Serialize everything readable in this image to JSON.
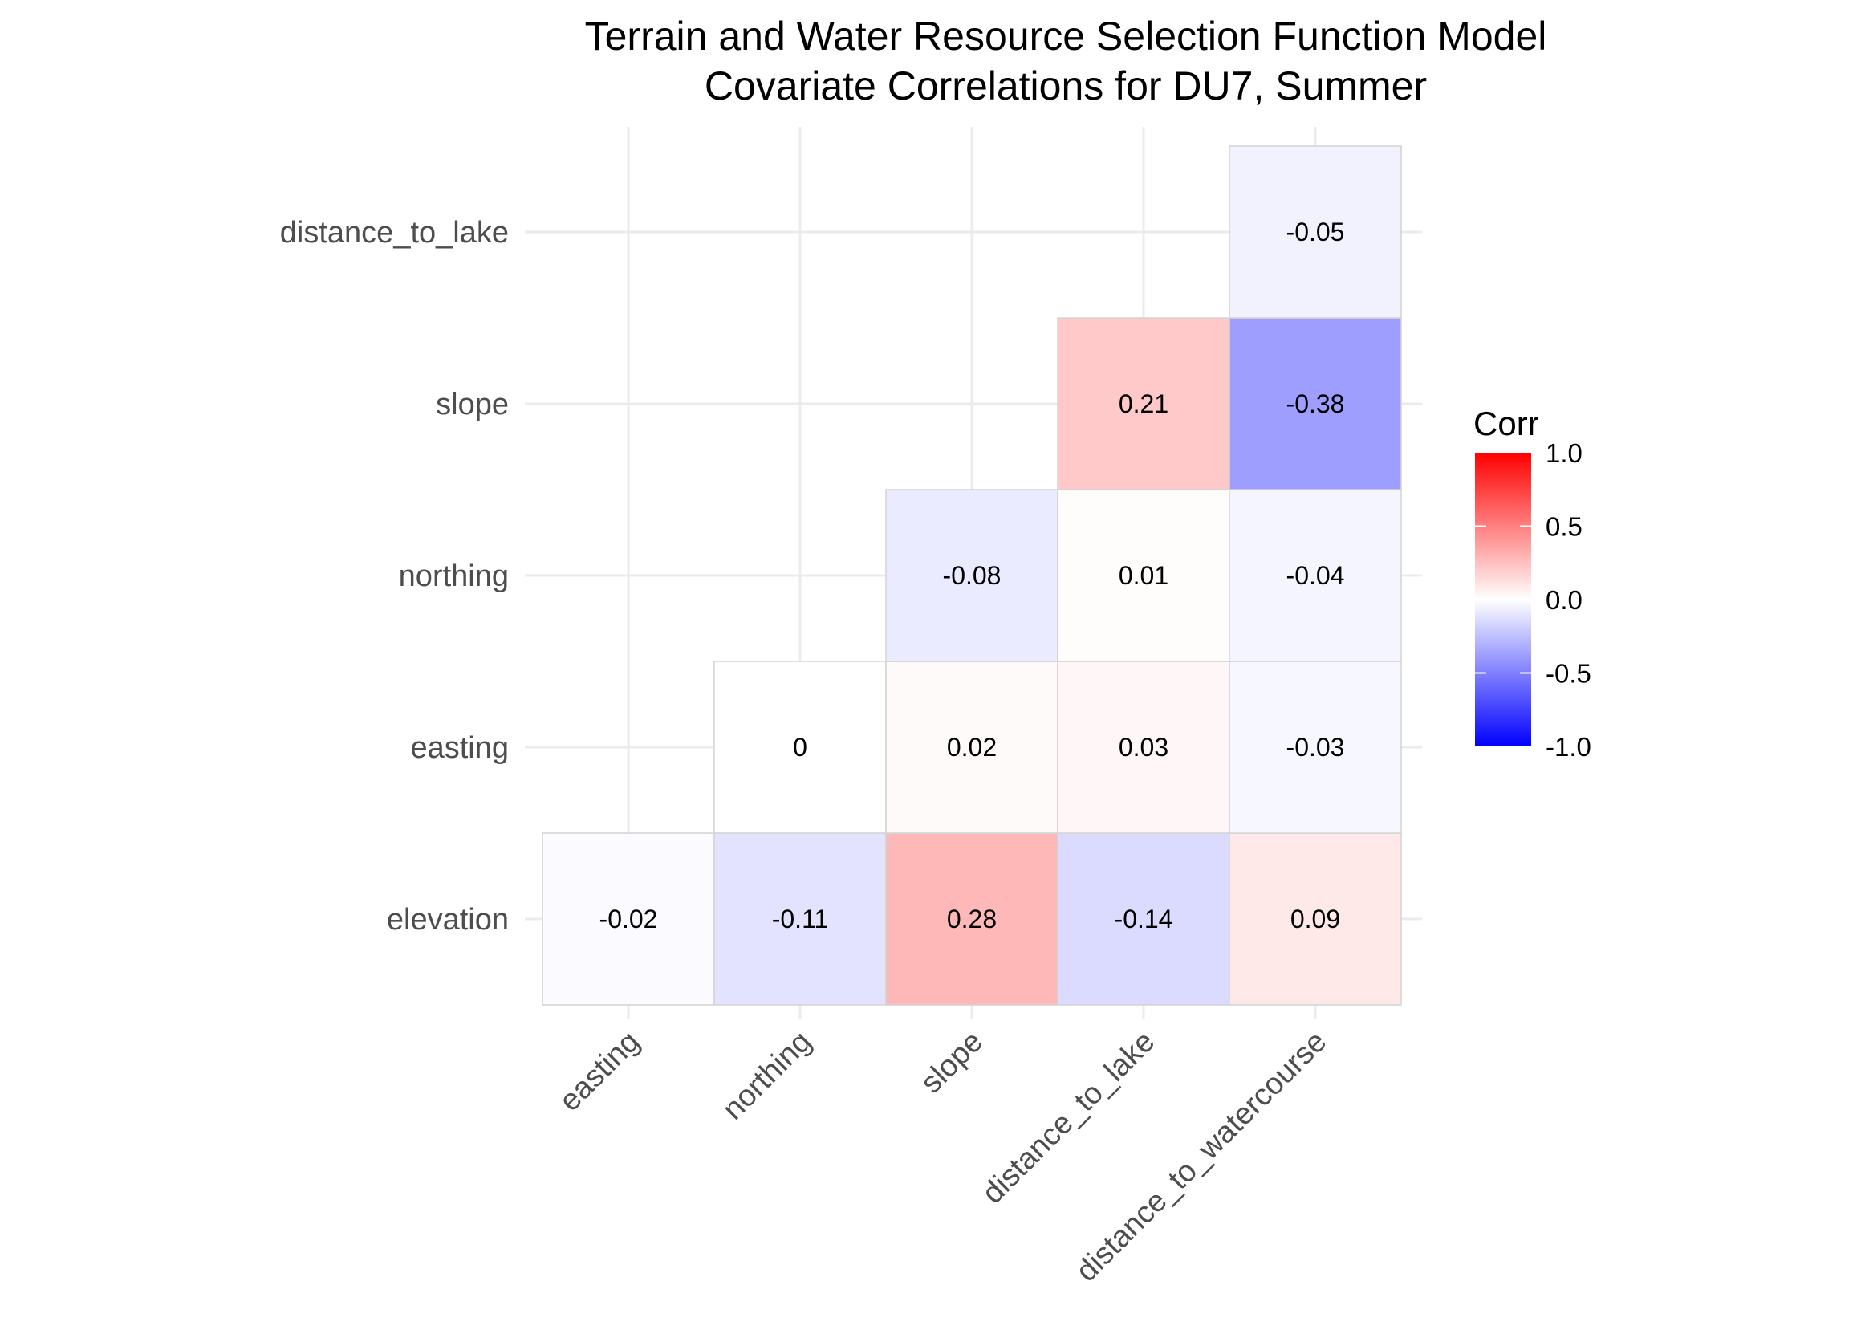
{
  "chart_data": {
    "type": "heatmap",
    "title": "Terrain and Water Resource Selection Function Model",
    "subtitle": "Covariate Correlations for DU7, Summer",
    "x_categories": [
      "easting",
      "northing",
      "slope",
      "distance_to_lake",
      "distance_to_watercourse"
    ],
    "y_categories": [
      "elevation",
      "easting",
      "northing",
      "slope",
      "distance_to_lake"
    ],
    "cells": [
      {
        "x": "easting",
        "y": "elevation",
        "value": -0.02,
        "label": "-0.02"
      },
      {
        "x": "northing",
        "y": "elevation",
        "value": -0.11,
        "label": "-0.11"
      },
      {
        "x": "slope",
        "y": "elevation",
        "value": 0.28,
        "label": "0.28"
      },
      {
        "x": "distance_to_lake",
        "y": "elevation",
        "value": -0.14,
        "label": "-0.14"
      },
      {
        "x": "distance_to_watercourse",
        "y": "elevation",
        "value": 0.09,
        "label": "0.09"
      },
      {
        "x": "northing",
        "y": "easting",
        "value": 0,
        "label": "0"
      },
      {
        "x": "slope",
        "y": "easting",
        "value": 0.02,
        "label": "0.02"
      },
      {
        "x": "distance_to_lake",
        "y": "easting",
        "value": 0.03,
        "label": "0.03"
      },
      {
        "x": "distance_to_watercourse",
        "y": "easting",
        "value": -0.03,
        "label": "-0.03"
      },
      {
        "x": "slope",
        "y": "northing",
        "value": -0.08,
        "label": "-0.08"
      },
      {
        "x": "distance_to_lake",
        "y": "northing",
        "value": 0.01,
        "label": "0.01"
      },
      {
        "x": "distance_to_watercourse",
        "y": "northing",
        "value": -0.04,
        "label": "-0.04"
      },
      {
        "x": "distance_to_lake",
        "y": "slope",
        "value": 0.21,
        "label": "0.21"
      },
      {
        "x": "distance_to_watercourse",
        "y": "slope",
        "value": -0.38,
        "label": "-0.38"
      },
      {
        "x": "distance_to_watercourse",
        "y": "distance_to_lake",
        "value": -0.05,
        "label": "-0.05"
      }
    ],
    "legend": {
      "title": "Corr",
      "range": [
        -1.0,
        1.0
      ],
      "ticks": [
        "1.0",
        "0.5",
        "0.0",
        "-0.5",
        "-1.0"
      ],
      "tick_values": [
        1.0,
        0.5,
        0.0,
        -0.5,
        -1.0
      ],
      "low_color": "#0000ff",
      "mid_color": "#ffffff",
      "high_color": "#ff0000",
      "placement": "right"
    },
    "grid": true
  }
}
